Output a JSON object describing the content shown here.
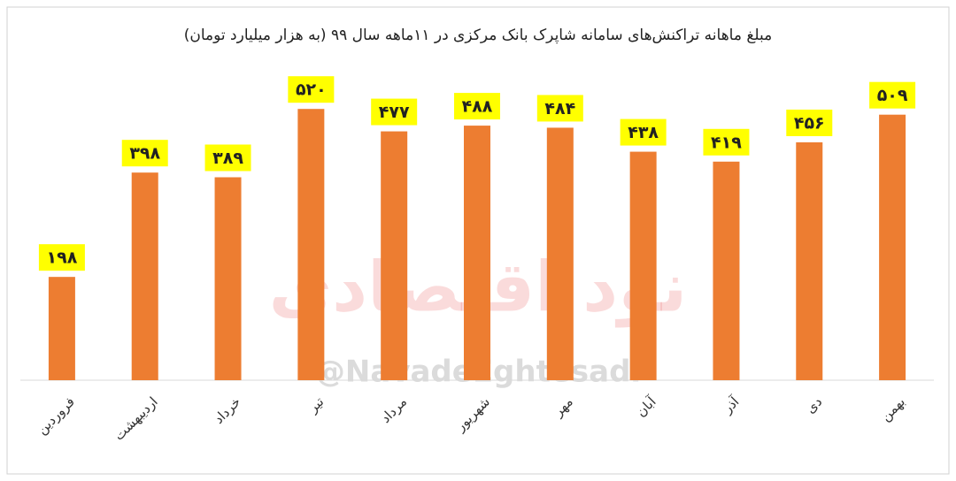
{
  "chart_data": {
    "type": "bar",
    "title": "مبلغ ماهانه تراکنش‌های سامانه شاپرک بانک مرکزی در ۱۱ماهه سال ۹۹ (به هزار میلیارد تومان)",
    "categories": [
      "فروردین",
      "اردیبهشت",
      "خرداد",
      "تیر",
      "مرداد",
      "شهریور",
      "مهر",
      "آبان",
      "آذر",
      "دی",
      "بهمن"
    ],
    "values": [
      198,
      398,
      389,
      520,
      477,
      488,
      484,
      438,
      419,
      456,
      509
    ],
    "value_labels": [
      "۱۹۸",
      "۳۹۸",
      "۳۸۹",
      "۵۲۰",
      "۴۷۷",
      "۴۸۸",
      "۴۸۴",
      "۴۳۸",
      "۴۱۹",
      "۴۵۶",
      "۵۰۹"
    ],
    "color": "#ed7d31",
    "label_box_color": "#ffff00",
    "ylim": [
      0,
      600
    ]
  },
  "watermark": {
    "logo_text": "نود اقتصادی",
    "handle": "@NavadeEghtesadi"
  }
}
